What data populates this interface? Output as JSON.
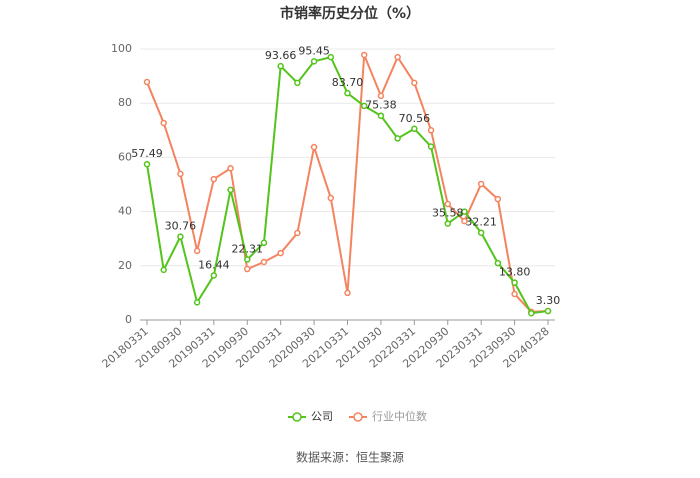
{
  "chart_data": {
    "type": "line",
    "title": "市销率历史分位（%）",
    "source": "数据来源：恒生聚源",
    "categories": [
      "20180331",
      null,
      "20180930",
      null,
      "20190331",
      null,
      "20190930",
      null,
      "20200331",
      null,
      "20200930",
      null,
      "20210331",
      null,
      "20210930",
      null,
      "20220331",
      null,
      "20220930",
      null,
      "20230331",
      null,
      "20230930",
      null,
      "20240328"
    ],
    "series": [
      {
        "name": "公司",
        "color": "#52c41a",
        "values": [
          57.49,
          18.5,
          30.76,
          6.5,
          16.44,
          48,
          22.31,
          28.5,
          93.66,
          87.5,
          95.45,
          97,
          83.7,
          79,
          75.38,
          67,
          70.56,
          64,
          35.58,
          40,
          32.21,
          21,
          13.8,
          2.5,
          3.3
        ],
        "value_labels": [
          "57.49",
          null,
          "30.76",
          null,
          "16.44",
          null,
          "22.31",
          null,
          "93.66",
          null,
          "95.45",
          null,
          "83.70",
          null,
          "75.38",
          null,
          "70.56",
          null,
          "35.58",
          null,
          "32.21",
          null,
          "13.80",
          null,
          "3.30"
        ]
      },
      {
        "name": "行业中位数",
        "color": "#f4845f",
        "values": [
          87.8,
          72.7,
          53.9,
          25.5,
          52,
          56,
          18.8,
          21.4,
          24.7,
          32.1,
          63.8,
          45,
          10,
          97.8,
          82.7,
          97,
          87.5,
          70,
          42.8,
          36.5,
          50.2,
          44.6,
          9.6,
          3,
          3.3
        ]
      }
    ],
    "ylim": [
      0,
      100
    ],
    "yticks": [
      0,
      20,
      40,
      60,
      80,
      100
    ],
    "grid": true,
    "legend": "bottom"
  }
}
